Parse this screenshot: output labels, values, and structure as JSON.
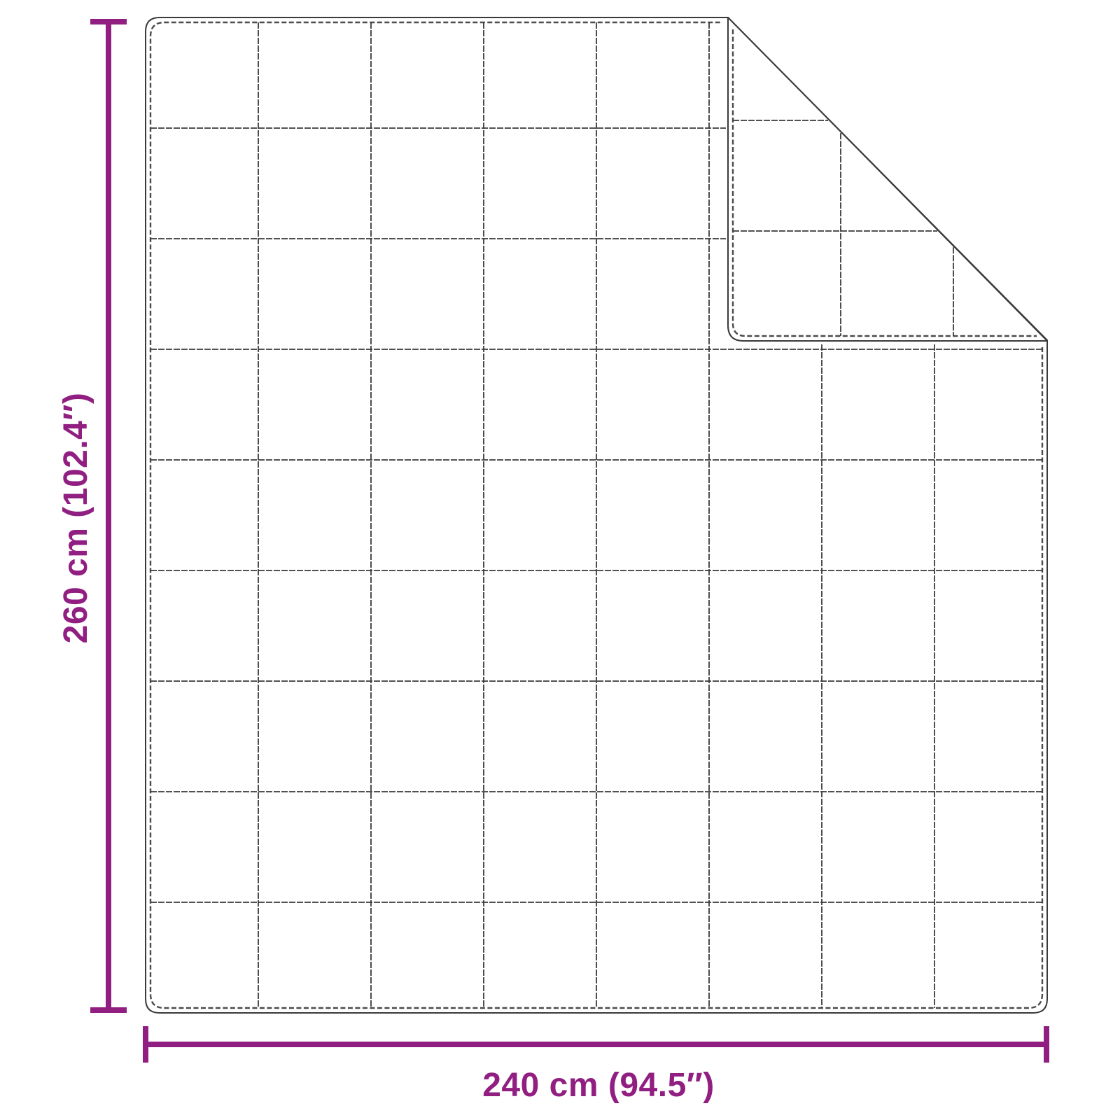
{
  "diagram": {
    "title": "blanket-dimension-diagram",
    "height_label": "260 cm (102.4″)",
    "width_label": "240 cm (94.5″)",
    "height_cm": "260",
    "height_inches": "102.4",
    "width_cm": "240",
    "width_inches": "94.5",
    "grid": {
      "columns": 8,
      "rows": 9
    },
    "colors": {
      "dimension": "#911f82",
      "outline": "#3a3a3a",
      "stitch": "#4b4b4b",
      "background": "#ffffff"
    }
  }
}
